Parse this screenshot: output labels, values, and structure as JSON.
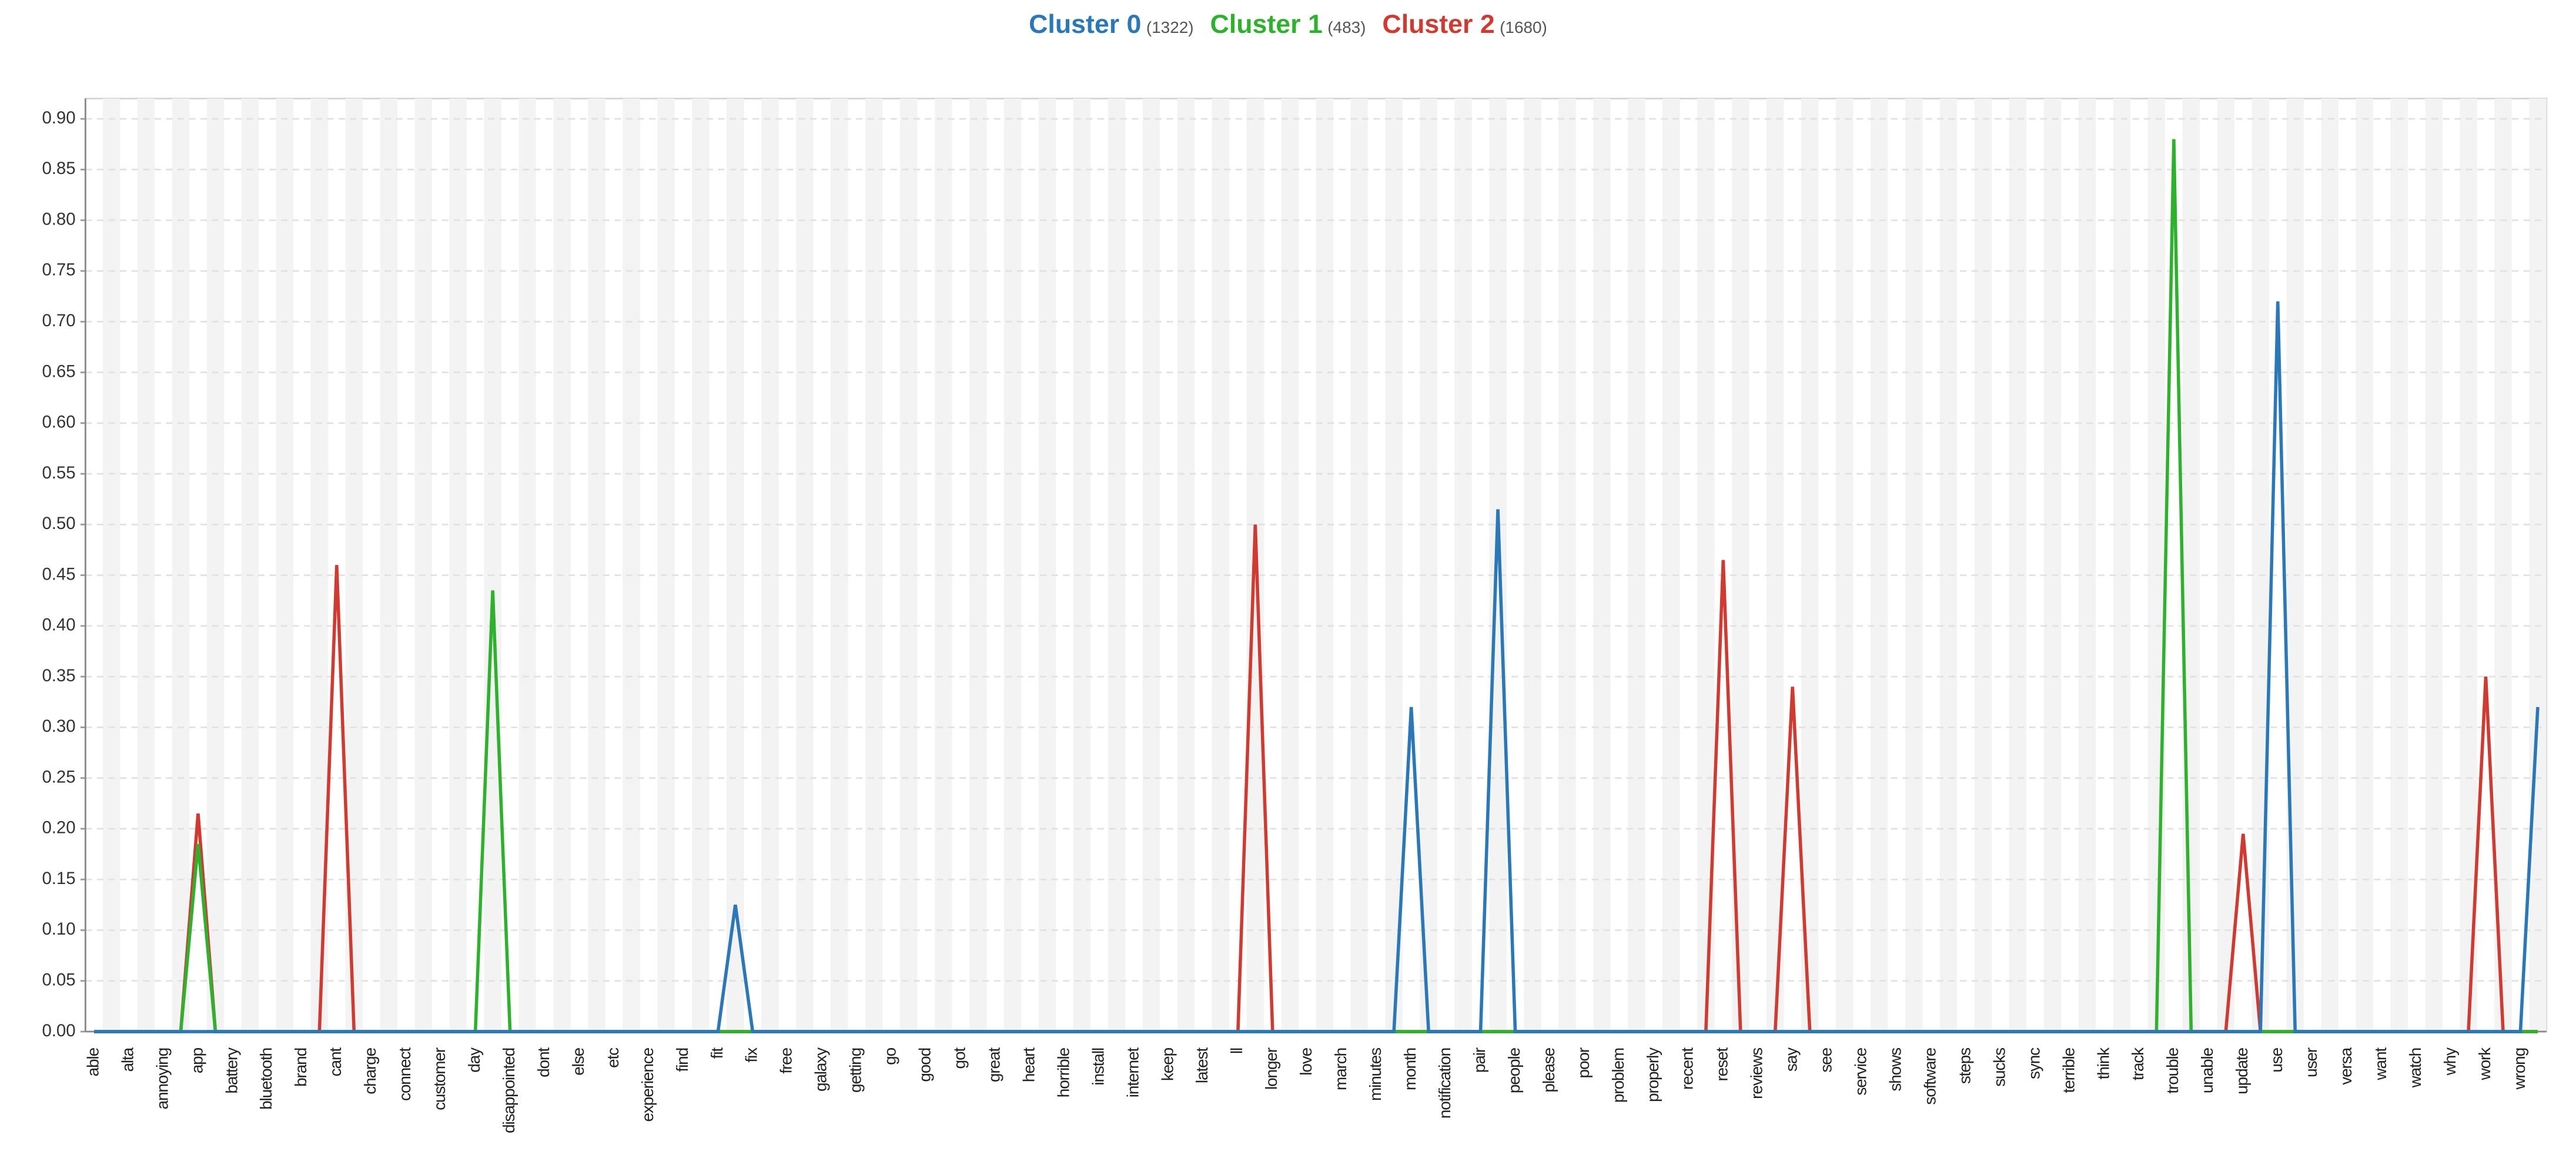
{
  "chart_data": {
    "type": "line",
    "categories": [
      "able",
      null,
      "alta",
      null,
      "annoying",
      null,
      "app",
      null,
      "battery",
      null,
      "bluetooth",
      null,
      "brand",
      null,
      "cant",
      null,
      "charge",
      null,
      "connect",
      null,
      "customer",
      null,
      "day",
      null,
      "disappointed",
      null,
      "dont",
      null,
      "else",
      null,
      "etc",
      null,
      "experience",
      null,
      "find",
      null,
      "fit",
      null,
      "fix",
      null,
      "free",
      null,
      "galaxy",
      null,
      "getting",
      null,
      "go",
      null,
      "good",
      null,
      "got",
      null,
      "great",
      null,
      "heart",
      null,
      "horrible",
      null,
      "install",
      null,
      "internet",
      null,
      "keep",
      null,
      "latest",
      null,
      "ll",
      null,
      "longer",
      null,
      "love",
      null,
      "march",
      null,
      "minutes",
      null,
      "month",
      null,
      "notification",
      null,
      "pair",
      null,
      "people",
      null,
      "please",
      null,
      "poor",
      null,
      "problem",
      null,
      "properly",
      null,
      "recent",
      null,
      "reset",
      null,
      "reviews",
      null,
      "say",
      null,
      "see",
      null,
      "service",
      null,
      "shows",
      null,
      "software",
      null,
      "steps",
      null,
      "sucks",
      null,
      "sync",
      null,
      "terrible",
      null,
      "think",
      null,
      "track",
      null,
      "trouble",
      null,
      "unable",
      null,
      "update",
      null,
      "use",
      null,
      "user",
      null,
      "versa",
      null,
      "want",
      null,
      "watch",
      null,
      "why",
      null,
      "work",
      null,
      "wrong",
      null
    ],
    "series": [
      {
        "name": "Cluster 0",
        "count_label": "(1322)",
        "color": "#2a78b8",
        "values": [
          0,
          0,
          0,
          0,
          0,
          0,
          0,
          0,
          0,
          0,
          0,
          0,
          0,
          0,
          0,
          0,
          0,
          0,
          0,
          0,
          0,
          0,
          0,
          0,
          0,
          0,
          0,
          0,
          0,
          0,
          0,
          0,
          0,
          0,
          0,
          0,
          0,
          0.125,
          0,
          0,
          0,
          0,
          0,
          0,
          0,
          0,
          0,
          0,
          0,
          0,
          0,
          0,
          0,
          0,
          0,
          0,
          0,
          0,
          0,
          0,
          0,
          0,
          0,
          0,
          0,
          0,
          0,
          0,
          0,
          0,
          0,
          0,
          0,
          0,
          0,
          0,
          0.32,
          0,
          0,
          0,
          0,
          0.515,
          0,
          0,
          0,
          0,
          0,
          0,
          0,
          0,
          0,
          0,
          0,
          0,
          0,
          0,
          0,
          0,
          0,
          0,
          0,
          0,
          0,
          0,
          0,
          0,
          0,
          0,
          0,
          0,
          0,
          0,
          0,
          0,
          0,
          0,
          0,
          0,
          0,
          0,
          0,
          0,
          0,
          0,
          0,
          0,
          0.72,
          0,
          0,
          0,
          0,
          0,
          0,
          0,
          0,
          0,
          0,
          0,
          0,
          0,
          0,
          0.32
        ]
      },
      {
        "name": "Cluster 1",
        "count_label": "(483)",
        "color": "#2eb22e",
        "values": [
          0,
          0,
          0,
          0,
          0,
          0,
          0.185,
          0,
          0,
          0,
          0,
          0,
          0,
          0,
          0,
          0,
          0,
          0,
          0,
          0,
          0,
          0,
          0,
          0.435,
          0,
          0,
          0,
          0,
          0,
          0,
          0,
          0,
          0,
          0,
          0,
          0,
          0,
          0,
          0,
          0,
          0,
          0,
          0,
          0,
          0,
          0,
          0,
          0,
          0,
          0,
          0,
          0,
          0,
          0,
          0,
          0,
          0,
          0,
          0,
          0,
          0,
          0,
          0,
          0,
          0,
          0,
          0,
          0,
          0,
          0,
          0,
          0,
          0,
          0,
          0,
          0,
          0,
          0,
          0,
          0,
          0,
          0,
          0,
          0,
          0,
          0,
          0,
          0,
          0,
          0,
          0,
          0,
          0,
          0,
          0,
          0,
          0,
          0,
          0,
          0,
          0,
          0,
          0,
          0,
          0,
          0,
          0,
          0,
          0,
          0,
          0,
          0,
          0,
          0,
          0,
          0,
          0,
          0,
          0,
          0,
          0.88,
          0,
          0,
          0,
          0,
          0,
          0,
          0,
          0,
          0,
          0,
          0,
          0,
          0,
          0,
          0,
          0,
          0,
          0,
          0,
          0,
          0
        ]
      },
      {
        "name": "Cluster 2",
        "count_label": "(1680)",
        "color": "#d03a30",
        "values": [
          0,
          0,
          0,
          0,
          0,
          0,
          0.215,
          0,
          0,
          0,
          0,
          0,
          0,
          0,
          0.46,
          0,
          0,
          0,
          0,
          0,
          0,
          0,
          0,
          0,
          0,
          0,
          0,
          0,
          0,
          0,
          0,
          0,
          0,
          0,
          0,
          0,
          0,
          0,
          0,
          0,
          0,
          0,
          0,
          0,
          0,
          0,
          0,
          0,
          0,
          0,
          0,
          0,
          0,
          0,
          0,
          0,
          0,
          0,
          0,
          0,
          0,
          0,
          0,
          0,
          0,
          0,
          0,
          0.5,
          0,
          0,
          0,
          0,
          0,
          0,
          0,
          0,
          0,
          0,
          0,
          0,
          0,
          0,
          0,
          0,
          0,
          0,
          0,
          0,
          0,
          0,
          0,
          0,
          0,
          0,
          0.465,
          0,
          0,
          0,
          0.34,
          0,
          0,
          0,
          0,
          0,
          0,
          0,
          0,
          0,
          0,
          0,
          0,
          0,
          0,
          0,
          0,
          0,
          0,
          0,
          0,
          0,
          0,
          0,
          0,
          0,
          0.195,
          0,
          0,
          0,
          0,
          0,
          0,
          0,
          0,
          0,
          0,
          0,
          0,
          0,
          0.35,
          0,
          0,
          0
        ]
      }
    ],
    "ylim": [
      0,
      0.92
    ],
    "yticks": [
      {
        "value": 0,
        "label": "0.00"
      },
      {
        "value": 0.05,
        "label": "0.05"
      },
      {
        "value": 0.1,
        "label": "0.10"
      },
      {
        "value": 0.15,
        "label": "0.15"
      },
      {
        "value": 0.2,
        "label": "0.20"
      },
      {
        "value": 0.25,
        "label": "0.25"
      },
      {
        "value": 0.3,
        "label": "0.30"
      },
      {
        "value": 0.35,
        "label": "0.35"
      },
      {
        "value": 0.4,
        "label": "0.40"
      },
      {
        "value": 0.45,
        "label": "0.45"
      },
      {
        "value": 0.5,
        "label": "0.50"
      },
      {
        "value": 0.55,
        "label": "0.55"
      },
      {
        "value": 0.6,
        "label": "0.60"
      },
      {
        "value": 0.65,
        "label": "0.65"
      },
      {
        "value": 0.7,
        "label": "0.70"
      },
      {
        "value": 0.75,
        "label": "0.75"
      },
      {
        "value": 0.8,
        "label": "0.80"
      },
      {
        "value": 0.85,
        "label": "0.85"
      },
      {
        "value": 0.9,
        "label": "0.90"
      }
    ],
    "grid": true
  }
}
